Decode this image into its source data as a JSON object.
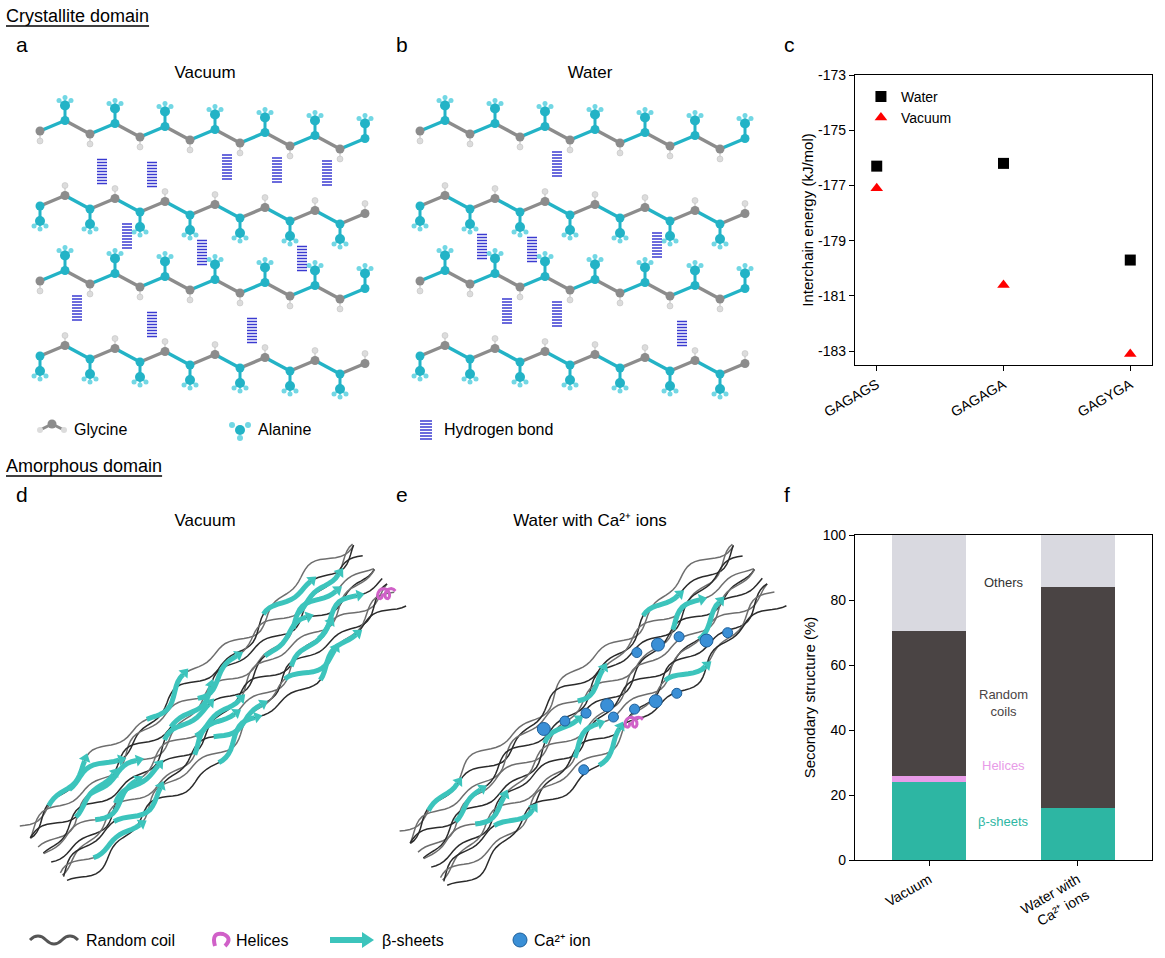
{
  "sections": {
    "crystallite": "Crystallite domain",
    "amorphous": "Amorphous domain"
  },
  "panels": {
    "a": {
      "label": "a",
      "title": "Vacuum"
    },
    "b": {
      "label": "b",
      "title": "Water"
    },
    "c": {
      "label": "c"
    },
    "d": {
      "label": "d",
      "title": "Vacuum"
    },
    "e": {
      "label": "e",
      "title": "Water with Ca²⁺ ions"
    },
    "f": {
      "label": "f"
    }
  },
  "legend_crystallite": [
    "Glycine",
    "Alanine",
    "Hydrogen bond"
  ],
  "legend_amorphous": [
    "Random coil",
    "Helices",
    "β-sheets",
    "Ca²⁺ ion"
  ],
  "chart_data": [
    {
      "type": "scatter",
      "categories": [
        "GAGAGS",
        "GAGAGA",
        "GAGYGA"
      ],
      "ylabel": "Interchain energy (kJ/mol)",
      "series": [
        {
          "name": "Water",
          "color": "#000000",
          "marker": "square",
          "values": [
            -176.3,
            -176.2,
            -179.7
          ]
        },
        {
          "name": "Vacuum",
          "color": "#ff0000",
          "marker": "triangle-up",
          "values": [
            -177.1,
            -180.6,
            -183.1
          ]
        }
      ],
      "ylim": [
        -183.5,
        -173
      ],
      "yticks": [
        -173,
        -175,
        -177,
        -179,
        -181,
        -183
      ],
      "legend": "top left"
    },
    {
      "type": "bar",
      "stacked": true,
      "categories": [
        "Vacuum",
        "Water with Ca²⁺ ions"
      ],
      "ylabel": "Secondary structure (%)",
      "series": [
        {
          "name": "β-sheets",
          "color": "#2db6a3",
          "values": [
            24,
            16
          ]
        },
        {
          "name": "Helices",
          "color": "#e89be8",
          "values": [
            2,
            0
          ]
        },
        {
          "name": "Random coils",
          "color": "#4a4444",
          "values": [
            44.5,
            68
          ]
        },
        {
          "name": "Others",
          "color": "#d9d9e0",
          "values": [
            29.5,
            16
          ]
        }
      ],
      "ylim": [
        0,
        100
      ],
      "yticks": [
        0,
        20,
        40,
        60,
        80,
        100
      ]
    }
  ]
}
